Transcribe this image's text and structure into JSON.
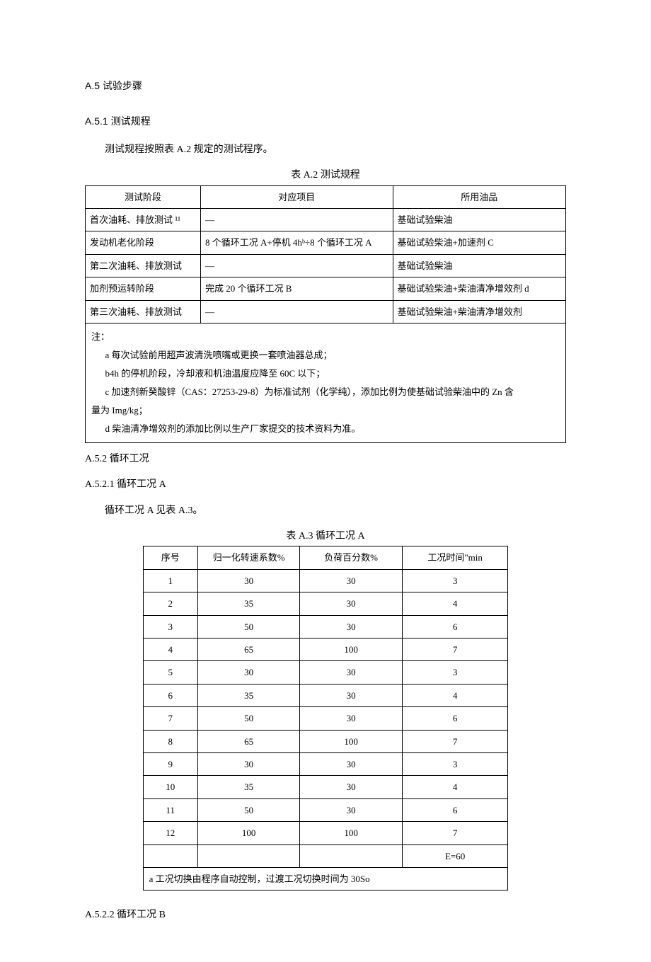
{
  "sections": {
    "a5": "A.5 试验步骤",
    "a5_1": "A.5.1 测试规程",
    "a5_1_text": "测试规程按照表 A.2 规定的测试程序。",
    "table_a2_caption": "表 A.2 测试规程",
    "a5_2": "A.5.2 循环工况",
    "a5_2_1": "A.5.2.1 循环工况 A",
    "a5_2_1_text": "循环工况 A 见表 A.3。",
    "table_a3_caption": "表 A.3 循环工况 A",
    "a5_2_2": "A.5.2.2 循环工况 B"
  },
  "table_a2": {
    "headers": [
      "测试阶段",
      "对应项目",
      "所用油品"
    ],
    "rows": [
      [
        "首次油耗、排放测试 ¹¹",
        "—",
        "基础试验柴油"
      ],
      [
        "发动机老化阶段",
        "8 个循环工况 A+停机 4hᵇ÷8 个循环工况 A",
        "基础试验柴油+加速剂 C"
      ],
      [
        "第二次油耗、排放测试",
        "—",
        "基础试验柴油"
      ],
      [
        "加剂预运转阶段",
        "完成 20 个循环工况 B",
        "基础试验柴油+柴油清净增效剂 d"
      ],
      [
        "第三次油耗、排放测试",
        "—",
        "基础试验柴油+柴油清净增效剂"
      ]
    ],
    "notes_label": "注：",
    "notes": [
      "a 每次试验前用超声波清洗喷嘴或更换一套喷油器总成；",
      "b4h 的停机阶段，冷却液和机油温度应降至 60C 以下；",
      "c 加速剂新癸酸锌（CAS：27253-29-8）为标准试剂（化学纯），添加比例为使基础试验柴油中的 Zn 含",
      "量为 Img/kg；",
      "d 柴油清净增效剂的添加比例以生产厂家提交的技术资料为准。"
    ]
  },
  "table_a3": {
    "headers": [
      "序号",
      "归一化转速系数%",
      "负荷百分数%",
      "工况时间\"min"
    ],
    "rows": [
      [
        "1",
        "30",
        "30",
        "3"
      ],
      [
        "2",
        "35",
        "30",
        "4"
      ],
      [
        "3",
        "50",
        "30",
        "6"
      ],
      [
        "4",
        "65",
        "100",
        "7"
      ],
      [
        "5",
        "30",
        "30",
        "3"
      ],
      [
        "6",
        "35",
        "30",
        "4"
      ],
      [
        "7",
        "50",
        "30",
        "6"
      ],
      [
        "8",
        "65",
        "100",
        "7"
      ],
      [
        "9",
        "30",
        "30",
        "3"
      ],
      [
        "10",
        "35",
        "30",
        "4"
      ],
      [
        "11",
        "50",
        "30",
        "6"
      ],
      [
        "12",
        "100",
        "100",
        "7"
      ]
    ],
    "sum_label": "E=60",
    "footnote": "a 工况切换由程序自动控制，过渡工况切换时间为 30So"
  }
}
